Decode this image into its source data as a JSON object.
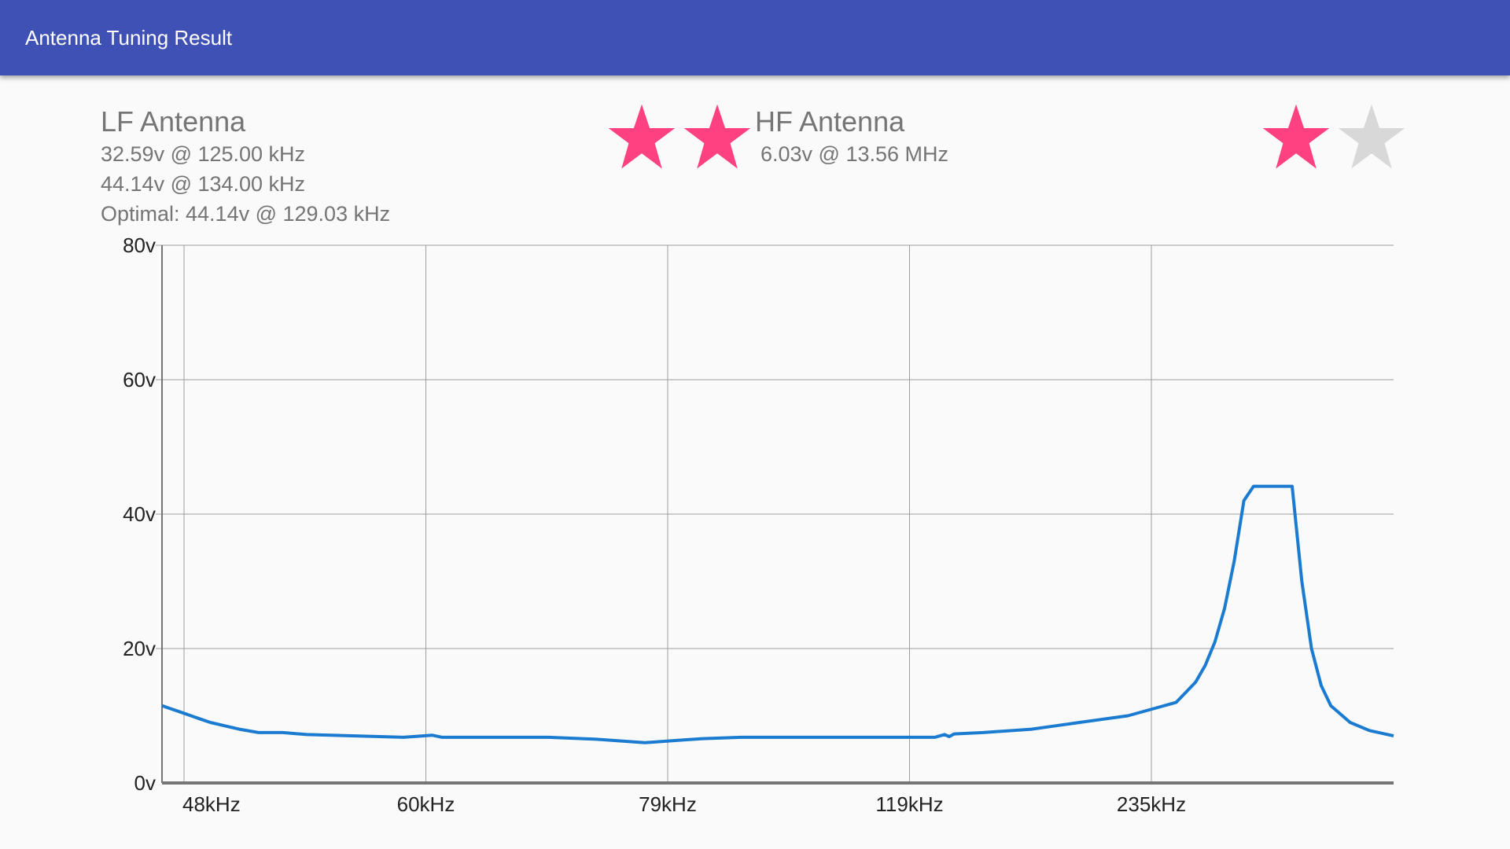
{
  "app": {
    "title": "Antenna Tuning Result"
  },
  "lf": {
    "title": "LF Antenna",
    "lines": [
      "32.59v @ 125.00 kHz",
      "44.14v @ 134.00 kHz",
      "Optimal: 44.14v @ 129.03 kHz"
    ],
    "rating": {
      "value": 2,
      "max": 2
    }
  },
  "hf": {
    "title": "HF Antenna",
    "lines": [
      "6.03v @ 13.56 MHz"
    ],
    "rating": {
      "value": 1,
      "max": 2
    }
  },
  "colors": {
    "appbar": "#3f51b5",
    "star_on": "#ff4081",
    "star_off": "#d8d8d8",
    "series": "#1a7bd0",
    "grid": "#9e9e9e"
  },
  "icons": {
    "star": "star-icon"
  },
  "chart_data": {
    "type": "line",
    "title": "",
    "xlabel": "",
    "ylabel": "",
    "ylim": [
      0,
      80
    ],
    "grid": true,
    "yticks": [
      "0v",
      "20v",
      "40v",
      "60v",
      "80v"
    ],
    "xticks": [
      "48kHz",
      "60kHz",
      "79kHz",
      "119kHz",
      "235kHz"
    ],
    "x_index_range": [
      0,
      255
    ],
    "series": [
      {
        "x": [
          0,
          2,
          4,
          6,
          8,
          10,
          13,
          16,
          20,
          25,
          30,
          40,
          50,
          56,
          58,
          60,
          70,
          80,
          90,
          100,
          108,
          112,
          120,
          124,
          130,
          140,
          150,
          160,
          162,
          163,
          164,
          170,
          180,
          185,
          190,
          200,
          205,
          210,
          212,
          214,
          216,
          218,
          220,
          222,
          224,
          226,
          228,
          230,
          232,
          234,
          236,
          238,
          240,
          242,
          246,
          250,
          255
        ],
        "y": [
          11.5,
          11.0,
          10.5,
          10.0,
          9.5,
          9.0,
          8.5,
          8.0,
          7.5,
          7.5,
          7.2,
          7.0,
          6.8,
          7.1,
          6.8,
          6.8,
          6.8,
          6.8,
          6.5,
          6.0,
          6.4,
          6.6,
          6.8,
          6.8,
          6.8,
          6.8,
          6.8,
          6.8,
          7.2,
          6.9,
          7.3,
          7.5,
          8.0,
          8.5,
          9.0,
          10.0,
          11.0,
          12.0,
          13.5,
          15.0,
          17.5,
          21.0,
          26.0,
          33.0,
          42.0,
          44.14,
          44.14,
          44.14,
          44.14,
          44.14,
          30.0,
          20.0,
          14.5,
          11.5,
          9.0,
          7.8,
          7.0
        ]
      }
    ]
  }
}
